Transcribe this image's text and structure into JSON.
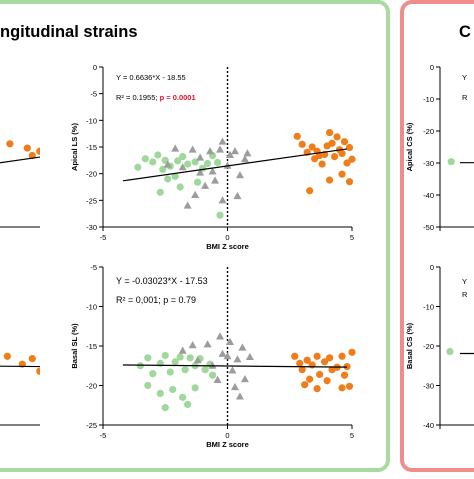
{
  "panels": {
    "left_title": "ngitudinal strains",
    "right_title": "C",
    "colors": {
      "left_border": "#a9dba0",
      "right_border": "#ef8c8c",
      "orange": "#f07d1a",
      "gray": "#9c9c9c",
      "green": "#9fd89a",
      "p_red": "#e0102a"
    }
  },
  "chart_data": [
    {
      "type": "scatter",
      "xlabel": "BMI Z score",
      "ylabel": "Apical LS (%)",
      "xlim": [
        -5,
        5
      ],
      "ylim": [
        -30,
        0
      ],
      "x_ticks": [
        "-5",
        "0",
        "5"
      ],
      "y_ticks": [
        "0",
        "-5",
        "-10",
        "-15",
        "-20",
        "-25",
        "-30"
      ],
      "annotations": {
        "eq": "Y = 0.6636*X - 18.55",
        "r2": "R² = 0.1955; ",
        "p": "p = 0.0001"
      },
      "regression": {
        "slope": 0.6636,
        "intercept": -18.55
      },
      "series": [
        {
          "marker": "circle",
          "color": "green",
          "points": [
            [
              -3.6,
              -18.8
            ],
            [
              -3.3,
              -17.2
            ],
            [
              -3,
              -17.8
            ],
            [
              -2.8,
              -16.5
            ],
            [
              -2.6,
              -19.2
            ],
            [
              -2.5,
              -17.5
            ],
            [
              -2.3,
              -18.6
            ],
            [
              -2.1,
              -20.5
            ],
            [
              -2,
              -17.6
            ],
            [
              -1.8,
              -16.8
            ],
            [
              -1.6,
              -18.2
            ],
            [
              -1.3,
              -17.8
            ],
            [
              -1,
              -19
            ],
            [
              -0.8,
              -18.1
            ],
            [
              -0.6,
              -16.6
            ],
            [
              -0.4,
              -17.9
            ],
            [
              -2.7,
              -23.5
            ],
            [
              -2.4,
              -21
            ],
            [
              -1.9,
              -22.5
            ],
            [
              -0.3,
              -27.8
            ],
            [
              -1.2,
              -21.6
            ]
          ]
        },
        {
          "marker": "triangle",
          "color": "gray",
          "points": [
            [
              -2.4,
              -18.3
            ],
            [
              -2.1,
              -15.3
            ],
            [
              -1.8,
              -18.8
            ],
            [
              -1.4,
              -15.5
            ],
            [
              -1.1,
              -19.8
            ],
            [
              -0.7,
              -15.8
            ],
            [
              -0.6,
              -19.6
            ],
            [
              -0.3,
              -15.5
            ],
            [
              -0.2,
              -14
            ],
            [
              0,
              -18.5
            ],
            [
              0.1,
              -16.5
            ],
            [
              0.3,
              -15.8
            ],
            [
              0.5,
              -20.3
            ],
            [
              0.7,
              -17.3
            ],
            [
              -0.5,
              -21.3
            ],
            [
              -0.9,
              -22.3
            ],
            [
              -1.3,
              -24
            ],
            [
              -1.6,
              -26
            ],
            [
              -0.2,
              -25
            ],
            [
              0.4,
              -24.2
            ],
            [
              -1.1,
              -17
            ],
            [
              0.8,
              -16.2
            ]
          ]
        },
        {
          "marker": "circle",
          "color": "orange",
          "points": [
            [
              2.8,
              -13
            ],
            [
              3,
              -14.5
            ],
            [
              3.2,
              -16
            ],
            [
              3.4,
              -15
            ],
            [
              3.5,
              -17.2
            ],
            [
              3.6,
              -15.8
            ],
            [
              3.7,
              -16.6
            ],
            [
              3.8,
              -18.2
            ],
            [
              3.9,
              -16.4
            ],
            [
              4,
              -14.8
            ],
            [
              4.1,
              -12.3
            ],
            [
              4.2,
              -14.3
            ],
            [
              4.3,
              -16.8
            ],
            [
              4.4,
              -13.1
            ],
            [
              4.5,
              -15.5
            ],
            [
              4.6,
              -16.2
            ],
            [
              4.7,
              -14
            ],
            [
              4.8,
              -18
            ],
            [
              4.9,
              -15.1
            ],
            [
              5,
              -17.3
            ],
            [
              3.3,
              -23.2
            ],
            [
              4.1,
              -21.2
            ],
            [
              4.6,
              -20.1
            ],
            [
              4.9,
              -21.5
            ]
          ]
        }
      ]
    },
    {
      "type": "scatter",
      "xlabel": "BMI Z score",
      "ylabel": "Basal SL (%)",
      "xlim": [
        -5,
        5
      ],
      "ylim": [
        -25,
        -5
      ],
      "x_ticks": [
        "-5",
        "0",
        "5"
      ],
      "y_ticks": [
        "-5",
        "-10",
        "-15",
        "-20",
        "-25"
      ],
      "annotations": {
        "eq": "Y = -0.03023*X - 17.53",
        "r2": "R² = 0,001; p = 0.79"
      },
      "regression": {
        "slope": -0.03023,
        "intercept": -17.53
      },
      "series": [
        {
          "marker": "circle",
          "color": "green",
          "points": [
            [
              -3.5,
              -17.5
            ],
            [
              -3.2,
              -16.5
            ],
            [
              -3,
              -18.5
            ],
            [
              -2.7,
              -17.2
            ],
            [
              -2.5,
              -16.2
            ],
            [
              -2.3,
              -18.3
            ],
            [
              -2.1,
              -17
            ],
            [
              -1.9,
              -16.4
            ],
            [
              -1.7,
              -18
            ],
            [
              -1.5,
              -16.5
            ],
            [
              -1.3,
              -17.5
            ],
            [
              -1.1,
              -16.6
            ],
            [
              -0.9,
              -18
            ],
            [
              -0.7,
              -17.3
            ],
            [
              -3.2,
              -20
            ],
            [
              -2.7,
              -21
            ],
            [
              -2.5,
              -22.8
            ],
            [
              -2.2,
              -20.5
            ],
            [
              -1.8,
              -21.5
            ],
            [
              -1.6,
              -22.4
            ],
            [
              -1.3,
              -20.3
            ],
            [
              -0.6,
              -18.7
            ]
          ]
        },
        {
          "marker": "triangle",
          "color": "gray",
          "points": [
            [
              -1.8,
              -15.6
            ],
            [
              -1.4,
              -14.9
            ],
            [
              -1.2,
              -16.8
            ],
            [
              -0.8,
              -14.8
            ],
            [
              -0.6,
              -17.5
            ],
            [
              -0.3,
              -13.8
            ],
            [
              -0.2,
              -16
            ],
            [
              0,
              -16.3
            ],
            [
              0.1,
              -14.5
            ],
            [
              0.2,
              -18.1
            ],
            [
              0.4,
              -16.7
            ],
            [
              0.6,
              -15.2
            ],
            [
              0.7,
              -19.2
            ],
            [
              0.9,
              -16.4
            ],
            [
              -0.4,
              -19.3
            ],
            [
              0.3,
              -20.2
            ],
            [
              0.5,
              -21.4
            ]
          ]
        },
        {
          "marker": "circle",
          "color": "orange",
          "points": [
            [
              2.7,
              -16.3
            ],
            [
              2.9,
              -17.2
            ],
            [
              3,
              -18
            ],
            [
              3.2,
              -16.8
            ],
            [
              3.3,
              -19.2
            ],
            [
              3.4,
              -17.4
            ],
            [
              3.6,
              -16.3
            ],
            [
              3.7,
              -18.6
            ],
            [
              3.9,
              -17
            ],
            [
              4,
              -19.4
            ],
            [
              4.1,
              -16.5
            ],
            [
              4.2,
              -18
            ],
            [
              4.4,
              -17.7
            ],
            [
              4.6,
              -16.3
            ],
            [
              4.7,
              -18.7
            ],
            [
              4.8,
              -17.6
            ],
            [
              4.9,
              -20.1
            ],
            [
              5,
              -15.8
            ],
            [
              3.6,
              -20.4
            ],
            [
              4.6,
              -20.3
            ],
            [
              3.1,
              -19.9
            ]
          ]
        }
      ]
    },
    {
      "type": "scatter",
      "xlabel": "",
      "ylabel": "",
      "xlim": [
        -5,
        5
      ],
      "ylim": [
        -30,
        0
      ],
      "x_ticks": [
        "5"
      ],
      "y_ticks": [],
      "annotations": {},
      "regression": {
        "slope": 0.6636,
        "intercept": -18.55
      },
      "series": [
        {
          "marker": "circle",
          "color": "orange",
          "points": [
            [
              1.3,
              -14.4
            ],
            [
              2,
              -15.2
            ],
            [
              2.5,
              -15.8
            ],
            [
              2.9,
              -15.1
            ],
            [
              3.2,
              -16.3
            ],
            [
              3.5,
              -15.3
            ],
            [
              3.8,
              -16.1
            ],
            [
              4.1,
              -15.6
            ],
            [
              4.4,
              -17.2
            ],
            [
              4.7,
              -16.1
            ],
            [
              4.9,
              -15
            ],
            [
              2.2,
              -16.6
            ],
            [
              3,
              -17
            ],
            [
              3.6,
              -17.6
            ],
            [
              4.2,
              -18.2
            ],
            [
              4.5,
              -18.6
            ],
            [
              4.6,
              -19.6
            ],
            [
              4.9,
              -20.2
            ]
          ]
        }
      ]
    },
    {
      "type": "scatter",
      "xlabel": "",
      "ylabel": "",
      "xlim": [
        -5,
        5
      ],
      "ylim": [
        -25,
        -5
      ],
      "x_ticks": [
        "5"
      ],
      "y_ticks": [],
      "annotations": {},
      "regression": {
        "slope": -0.03023,
        "intercept": -17.53
      },
      "series": [
        {
          "marker": "circle",
          "color": "orange",
          "points": [
            [
              1.2,
              -16.3
            ],
            [
              1.8,
              -17.3
            ],
            [
              2.2,
              -16.6
            ],
            [
              2.5,
              -18.2
            ],
            [
              2.8,
              -16.9
            ],
            [
              3.1,
              -17.6
            ],
            [
              3.4,
              -16.7
            ],
            [
              3.7,
              -19.3
            ],
            [
              4,
              -18.6
            ],
            [
              4.2,
              -17.6
            ],
            [
              4.4,
              -19.6
            ],
            [
              4.6,
              -19.1
            ],
            [
              4.9,
              -18.4
            ],
            [
              4.7,
              -20.4
            ],
            [
              3.3,
              -19.6
            ],
            [
              3.9,
              -17.1
            ],
            [
              4.4,
              -21.6
            ]
          ]
        }
      ]
    },
    {
      "type": "scatter",
      "xlabel": "",
      "ylabel": "Apical CS (%)",
      "xlim": [
        -5,
        5
      ],
      "ylim": [
        -50,
        0
      ],
      "x_ticks": [],
      "y_ticks": [
        "0",
        "-10",
        "-20",
        "-30",
        "-40",
        "-50"
      ],
      "annotations": {
        "eq": "Y",
        "r2": "R"
      },
      "regression": {
        "slope": 0,
        "intercept": -29.9
      },
      "series": [
        {
          "marker": "circle",
          "color": "green",
          "points": [
            [
              -4.55,
              -29.6
            ]
          ]
        }
      ]
    },
    {
      "type": "scatter",
      "xlabel": "",
      "ylabel": "Basal CS (%)",
      "xlim": [
        -5,
        5
      ],
      "ylim": [
        -40,
        0
      ],
      "x_ticks": [],
      "y_ticks": [
        "0",
        "-10",
        "-20",
        "-30",
        "-40"
      ],
      "annotations": {
        "eq": "Y",
        "r2": "R"
      },
      "regression": {
        "slope": 0,
        "intercept": -21.9
      },
      "series": [
        {
          "marker": "circle",
          "color": "green",
          "points": [
            [
              -4.6,
              -21.4
            ]
          ]
        }
      ]
    }
  ]
}
